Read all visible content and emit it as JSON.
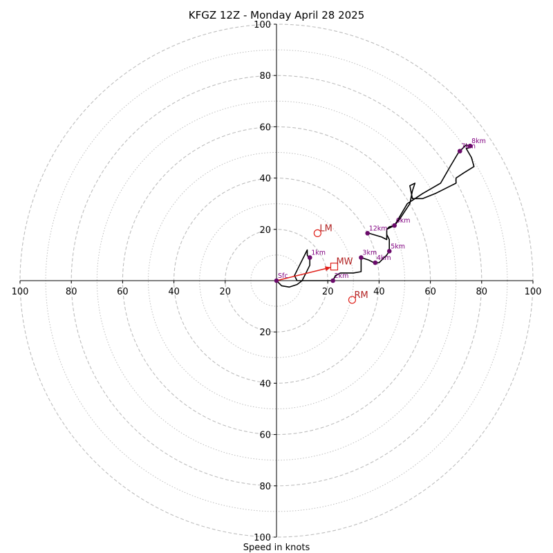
{
  "chart_data": {
    "type": "hodograph",
    "title": "KFGZ 12Z - Monday April 28 2025",
    "xlabel": "Speed in knots",
    "range": [
      -100,
      100
    ],
    "rings_dashed": [
      20,
      40,
      60,
      80,
      100
    ],
    "rings_dotted": [
      10,
      30,
      50,
      70,
      90
    ],
    "tick_labels": {
      "x": [
        "100",
        "80",
        "60",
        "40",
        "20",
        "20",
        "40",
        "60",
        "80",
        "100"
      ],
      "x_values": [
        -100,
        -80,
        -60,
        -40,
        -20,
        20,
        40,
        60,
        80,
        100
      ],
      "y": [
        "100",
        "80",
        "60",
        "40",
        "20",
        "20",
        "40",
        "60",
        "80",
        "100"
      ],
      "y_values": [
        100,
        80,
        60,
        40,
        20,
        -20,
        -40,
        -60,
        -80,
        -100
      ]
    },
    "hodograph_trace": [
      [
        0,
        0
      ],
      [
        2,
        -2
      ],
      [
        5,
        -2.5
      ],
      [
        8,
        -1.5
      ],
      [
        10,
        0
      ],
      [
        11,
        2
      ],
      [
        12,
        4
      ],
      [
        13,
        6
      ],
      [
        13,
        8
      ],
      [
        12,
        10
      ],
      [
        12,
        12
      ],
      [
        11,
        10
      ],
      [
        10,
        8
      ],
      [
        9,
        6
      ],
      [
        8,
        4
      ],
      [
        7,
        2
      ],
      [
        8,
        0
      ],
      [
        12,
        0
      ],
      [
        16,
        0
      ],
      [
        22,
        0
      ],
      [
        23,
        2
      ],
      [
        25,
        3
      ],
      [
        30,
        3
      ],
      [
        33,
        3.5
      ],
      [
        33,
        6
      ],
      [
        33,
        9
      ],
      [
        36,
        8
      ],
      [
        38,
        7
      ],
      [
        40,
        7
      ],
      [
        41,
        8
      ],
      [
        43,
        10
      ],
      [
        44,
        11.5
      ],
      [
        44,
        14
      ],
      [
        44,
        16
      ],
      [
        43,
        18
      ],
      [
        43,
        20
      ],
      [
        44,
        21
      ],
      [
        46,
        21.5
      ],
      [
        48,
        24
      ],
      [
        52,
        30
      ],
      [
        53,
        35
      ],
      [
        54,
        38
      ],
      [
        52,
        37
      ],
      [
        53,
        32
      ],
      [
        57,
        32
      ],
      [
        62,
        34
      ],
      [
        68,
        37
      ],
      [
        70,
        38
      ],
      [
        70,
        40
      ],
      [
        73,
        42
      ],
      [
        77,
        44.5
      ],
      [
        76,
        48
      ],
      [
        74,
        51.5
      ],
      [
        76,
        52
      ],
      [
        74,
        53
      ],
      [
        71,
        50
      ],
      [
        68,
        45
      ],
      [
        64,
        38
      ],
      [
        57,
        34
      ],
      [
        51,
        30
      ],
      [
        46,
        21.5
      ],
      [
        43,
        20
      ],
      [
        43,
        16
      ],
      [
        41,
        17
      ],
      [
        36,
        18.5
      ]
    ],
    "height_markers": [
      {
        "label": "Sfc",
        "u": 0,
        "v": 0
      },
      {
        "label": "1km",
        "u": 13,
        "v": 9
      },
      {
        "label": "2km",
        "u": 22,
        "v": 0
      },
      {
        "label": "3km",
        "u": 33,
        "v": 9
      },
      {
        "label": "4km",
        "u": 38.5,
        "v": 7
      },
      {
        "label": "5km",
        "u": 44,
        "v": 11.5
      },
      {
        "label": "6km",
        "u": 46,
        "v": 21.5
      },
      {
        "label": "7km",
        "u": 71.5,
        "v": 50.5
      },
      {
        "label": "8km",
        "u": 75.5,
        "v": 52.5
      },
      {
        "label": "12km",
        "u": 35.5,
        "v": 18.5
      }
    ],
    "motion_vectors": {
      "MW": {
        "u": 22.5,
        "v": 5.5
      },
      "LM": {
        "u": 16,
        "v": 18.5
      },
      "RM": {
        "u": 29.5,
        "v": -7.5
      }
    },
    "colors": {
      "trace": "#000000",
      "markers": "#6a0a6a",
      "marker_text": "#800080",
      "motion": "#e0201a",
      "motion_text": "#b22222",
      "grid": "#bdbdbd",
      "axes": "#000000"
    }
  }
}
